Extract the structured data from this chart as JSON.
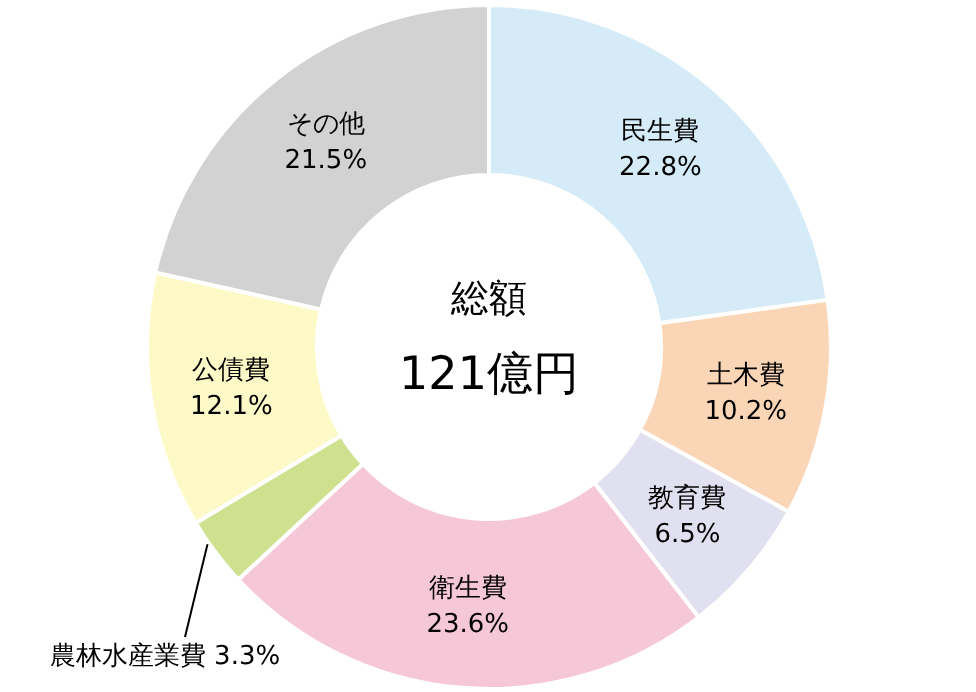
{
  "chart_data": {
    "type": "donut",
    "categories": [
      "民生費",
      "土木費",
      "教育費",
      "衛生費",
      "農林水産業費",
      "公債費",
      "その他"
    ],
    "values": [
      22.8,
      10.2,
      6.5,
      23.6,
      3.3,
      12.1,
      21.5
    ],
    "colors": [
      "#d5ecf8",
      "#fbd6b6",
      "#e1e0f0",
      "#f6c7d7",
      "#cfe18f",
      "#fefac8",
      "#d2d2d2"
    ],
    "value_labels": [
      "22.8%",
      "10.2%",
      "6.5%",
      "23.6%",
      "3.3%",
      "12.1%",
      "21.5%"
    ],
    "annotations": [
      "総額",
      "121億円"
    ],
    "legend": false
  }
}
